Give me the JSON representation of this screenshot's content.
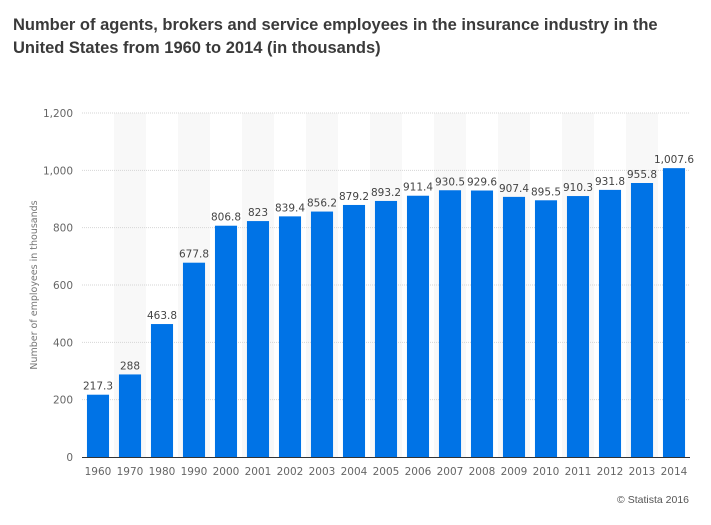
{
  "chart_data": {
    "type": "bar",
    "title": "Number of agents, brokers and service employees in the insurance industry in the United States from 1960 to 2014 (in thousands)",
    "xlabel": "",
    "ylabel": "Number of employees in thousands",
    "categories": [
      "1960",
      "1970",
      "1980",
      "1990",
      "2000",
      "2001",
      "2002",
      "2003",
      "2004",
      "2005",
      "2006",
      "2007",
      "2008",
      "2009",
      "2010",
      "2011",
      "2012",
      "2013",
      "2014"
    ],
    "values": [
      217.3,
      288,
      463.8,
      677.8,
      806.8,
      823,
      839.4,
      856.2,
      879.2,
      893.2,
      911.4,
      930.5,
      929.6,
      907.4,
      895.5,
      910.3,
      931.8,
      955.8,
      1007.6
    ],
    "value_labels": [
      "217.3",
      "288",
      "463.8",
      "677.8",
      "806.8",
      "823",
      "839.4",
      "856.2",
      "879.2",
      "893.2",
      "911.4",
      "930.5",
      "929.6",
      "907.4",
      "895.5",
      "910.3",
      "931.8",
      "955.8",
      "1,007.6"
    ],
    "ylim": [
      0,
      1200
    ],
    "yticks": [
      0,
      200,
      400,
      600,
      800,
      1000,
      1200
    ],
    "ytick_labels": [
      "0",
      "200",
      "400",
      "600",
      "800",
      "1,000",
      "1,200"
    ],
    "grid": true,
    "legend": "none",
    "bar_color": "#0073e6"
  },
  "credit": "© Statista 2016"
}
